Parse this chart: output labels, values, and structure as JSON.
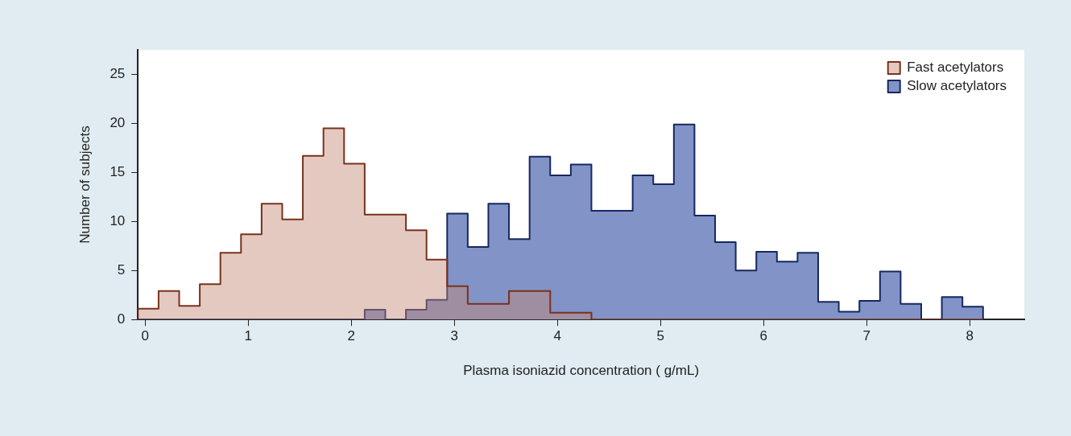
{
  "chart_data": {
    "type": "histogram",
    "xlabel": "Plasma isoniazid concentration ( g/mL)",
    "ylabel": "Number of subjects",
    "xlim": [
      -0.07,
      8.53
    ],
    "ylim": [
      0,
      27.5
    ],
    "xticks": [
      0,
      1,
      2,
      3,
      4,
      5,
      6,
      7,
      8
    ],
    "yticks": [
      0,
      5,
      10,
      15,
      20,
      25
    ],
    "legend": "top right",
    "bins": [
      -0.07,
      0.13,
      0.33,
      0.53,
      0.73,
      0.93,
      1.13,
      1.33,
      1.53,
      1.73,
      1.93,
      2.13,
      2.33,
      2.53,
      2.73,
      2.93,
      3.13,
      3.33,
      3.53,
      3.73,
      3.93,
      4.13,
      4.33,
      4.53,
      4.73,
      4.93,
      5.13,
      5.33,
      5.53,
      5.73,
      5.93,
      6.13,
      6.33,
      6.53,
      6.73,
      6.93,
      7.13,
      7.33,
      7.53,
      7.73,
      7.93,
      8.13
    ],
    "series": [
      {
        "name": "Fast acetylators",
        "color": "#e4c9c0",
        "values": [
          1.1,
          2.9,
          1.4,
          3.6,
          6.8,
          8.7,
          11.8,
          10.2,
          16.7,
          19.5,
          15.9,
          10.7,
          10.7,
          9.1,
          6.1,
          3.4,
          1.6,
          1.6,
          2.9,
          2.9,
          0.7,
          0.7,
          0,
          0,
          0,
          0,
          0,
          0,
          0,
          0,
          0,
          0,
          0,
          0,
          0,
          0,
          0,
          0,
          0,
          0,
          0
        ]
      },
      {
        "name": "Slow acetylators",
        "color": "#8193c7",
        "values": [
          0,
          0,
          0,
          0,
          0,
          0,
          0,
          0,
          0,
          0,
          0,
          1.0,
          0,
          1.0,
          2.0,
          10.8,
          7.4,
          11.8,
          8.2,
          16.6,
          14.7,
          15.8,
          11.1,
          11.1,
          14.7,
          13.8,
          19.9,
          10.6,
          7.9,
          5.0,
          6.9,
          5.9,
          6.8,
          1.8,
          0.8,
          1.9,
          4.9,
          1.6,
          0,
          2.3,
          1.3
        ]
      }
    ]
  }
}
